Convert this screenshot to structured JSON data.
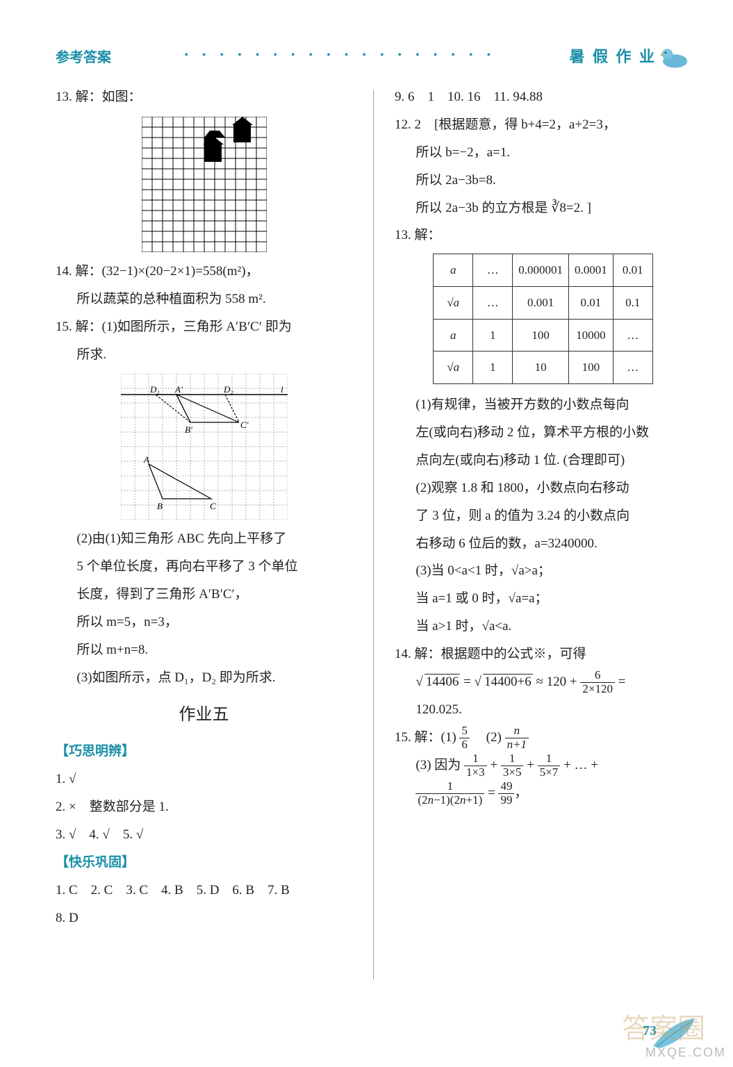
{
  "header": {
    "left": "参考答案",
    "dots": "• • • • • • • • • • • • • • • • • •",
    "right": "暑 假 作 业"
  },
  "left_col": {
    "l13": "13. 解：如图：",
    "l14a": "14. 解：(32−1)×(20−2×1)=558(m²)，",
    "l14b": "所以蔬菜的总种植面积为 558 m².",
    "l15a": "15. 解：(1)如图所示，三角形 A′B′C′ 即为",
    "l15b": "所求.",
    "l15c": "(2)由(1)知三角形 ABC 先向上平移了",
    "l15d": "5 个单位长度，再向右平移了 3 个单位",
    "l15e": "长度，得到了三角形 A′B′C′，",
    "l15f": "所以 m=5，n=3，",
    "l15g": "所以 m+n=8.",
    "l15h": "(3)如图所示，点 D₁，D₂ 即为所求.",
    "hw5": "作业五",
    "sec1": "【巧思明辨】",
    "q1": "1. √",
    "q2": "2. ×　整数部分是 1.",
    "q3": "3. √　4. √　5. √",
    "sec2": "【快乐巩固】",
    "ans_row1": "1. C　2. C　3. C　4. B　5. D　6. B　7. B",
    "ans_row2": "8. D"
  },
  "right_col": {
    "r9": "9. 6　1　10. 16　11. 94.88",
    "r12a": "12. 2　[根据题意，得 b+4=2，a+2=3，",
    "r12b": "所以 b=−2，a=1.",
    "r12c": "所以 2a−3b=8.",
    "r12d": "所以 2a−3b 的立方根是 ∛8=2. ]",
    "r13": "13. 解：",
    "r13_1": "(1)有规律，当被开方数的小数点每向",
    "r13_2": "左(或向右)移动 2 位，算术平方根的小数",
    "r13_3": "点向左(或向右)移动 1 位. (合理即可)",
    "r13_4": "(2)观察 1.8 和 1800，小数点向右移动",
    "r13_5": "了 3 位，则 a 的值为 3.24 的小数点向",
    "r13_6": "右移动 6 位后的数，a=3240000.",
    "r13_7": "(3)当 0<a<1 时，√a>a；",
    "r13_8": "当 a=1 或 0 时，√a=a；",
    "r13_9": "当 a>1 时，√a<a.",
    "r14a": "14. 解：根据题中的公式※，可得",
    "r14c": "120.025.",
    "r15a": "15. 解：(1)",
    "r15a2": "(2)",
    "r15b": "(3) 因为"
  },
  "table": {
    "cells": [
      [
        "a",
        "…",
        "0.000001",
        "0.0001",
        "0.01"
      ],
      [
        "√a",
        "…",
        "0.001",
        "0.01",
        "0.1"
      ],
      [
        "a",
        "1",
        "100",
        "10000",
        "…"
      ],
      [
        "√a",
        "1",
        "10",
        "100",
        "…"
      ]
    ]
  },
  "page_number": "73",
  "wm1": "答案圈",
  "wm2": "MXQE.COM",
  "colors": {
    "teal": "#1a8fa8",
    "text": "#222222"
  },
  "grid1": {
    "rows": 13,
    "cols": 12
  },
  "grid2": {
    "rows": 10,
    "cols": 12
  }
}
